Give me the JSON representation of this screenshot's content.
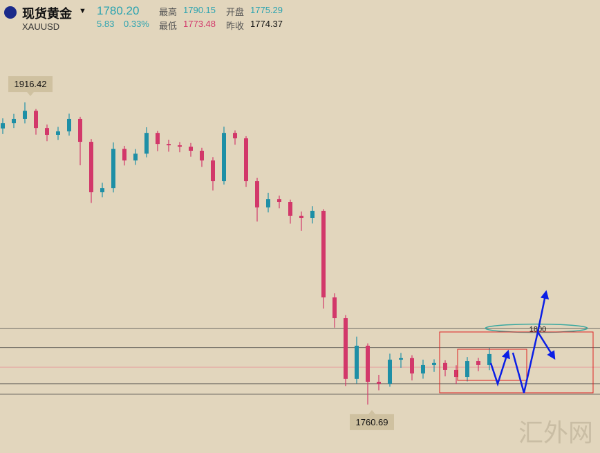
{
  "header": {
    "name": "现货黄金",
    "symbol": "XAUUSD",
    "price": "1780.20",
    "change": "5.83",
    "change_pct": "0.33%",
    "high_label": "最高",
    "high": "1790.15",
    "open_label": "开盘",
    "open": "1775.29",
    "low_label": "最低",
    "low": "1773.48",
    "prev_label": "昨收",
    "prev": "1774.37"
  },
  "chart_data": {
    "type": "candlestick",
    "ylim": [
      1735.7,
      1969.2
    ],
    "up_color": "#1e8fa6",
    "down_color": "#d2386a",
    "open": [
      1903.0,
      1905.7,
      1907.9,
      1912.1,
      1903.2,
      1899.7,
      1901.5,
      1907.9,
      1896.1,
      1870.1,
      1872.2,
      1892.5,
      1886.5,
      1890.0,
      1900.7,
      1895.0,
      1894.3,
      1893.6,
      1891.5,
      1886.5,
      1875.8,
      1900.7,
      1897.9,
      1875.8,
      1862.3,
      1866.5,
      1865.1,
      1858.0,
      1856.9,
      1860.5,
      1815.9,
      1805.2,
      1773.9,
      1791.0,
      1772.4,
      1771.4,
      1783.8,
      1784.6,
      1776.7,
      1781.0,
      1782.1,
      1778.5,
      1774.9,
      1783.1,
      1781.0
    ],
    "high": [
      1908.2,
      1910.5,
      1916.42,
      1913.0,
      1905.0,
      1903.8,
      1910.6,
      1909.0,
      1897.5,
      1875.0,
      1895.8,
      1894.0,
      1892.4,
      1903.6,
      1901.8,
      1897.2,
      1896.0,
      1895.5,
      1893.0,
      1888.2,
      1903.9,
      1902.0,
      1899.0,
      1877.6,
      1869.8,
      1868.4,
      1866.3,
      1860.2,
      1862.9,
      1861.4,
      1818.0,
      1806.8,
      1795.7,
      1792.2,
      1776.0,
      1786.9,
      1787.3,
      1786.1,
      1783.8,
      1784.0,
      1783.5,
      1780.9,
      1785.2,
      1784.7,
      1789.9
    ],
    "low": [
      1900.1,
      1903.2,
      1905.6,
      1899.8,
      1896.4,
      1897.1,
      1899.3,
      1884.0,
      1864.6,
      1867.5,
      1870.0,
      1883.9,
      1884.2,
      1888.1,
      1891.3,
      1891.0,
      1890.7,
      1888.4,
      1883.2,
      1871.0,
      1874.1,
      1894.6,
      1872.9,
      1855.0,
      1859.7,
      1861.8,
      1853.9,
      1850.2,
      1854.0,
      1810.1,
      1800.3,
      1770.2,
      1771.5,
      1760.69,
      1768.0,
      1769.9,
      1779.6,
      1773.1,
      1774.0,
      1777.5,
      1775.2,
      1771.3,
      1772.6,
      1777.9,
      1778.4
    ],
    "close": [
      1905.7,
      1907.9,
      1912.1,
      1903.2,
      1899.7,
      1901.5,
      1907.9,
      1896.1,
      1870.1,
      1872.2,
      1892.5,
      1886.5,
      1890.0,
      1900.7,
      1895.0,
      1894.3,
      1893.6,
      1891.5,
      1886.5,
      1875.8,
      1900.7,
      1897.9,
      1875.8,
      1862.3,
      1866.5,
      1865.1,
      1858.0,
      1856.9,
      1860.5,
      1815.9,
      1805.2,
      1773.9,
      1791.0,
      1772.4,
      1771.4,
      1783.8,
      1784.6,
      1776.7,
      1781.0,
      1782.1,
      1778.5,
      1774.9,
      1783.1,
      1781.0,
      1786.7
    ],
    "levels": [
      1800,
      1790,
      1771.4,
      1766
    ],
    "price_line": 1779.9
  },
  "watermark": "汇外网"
}
